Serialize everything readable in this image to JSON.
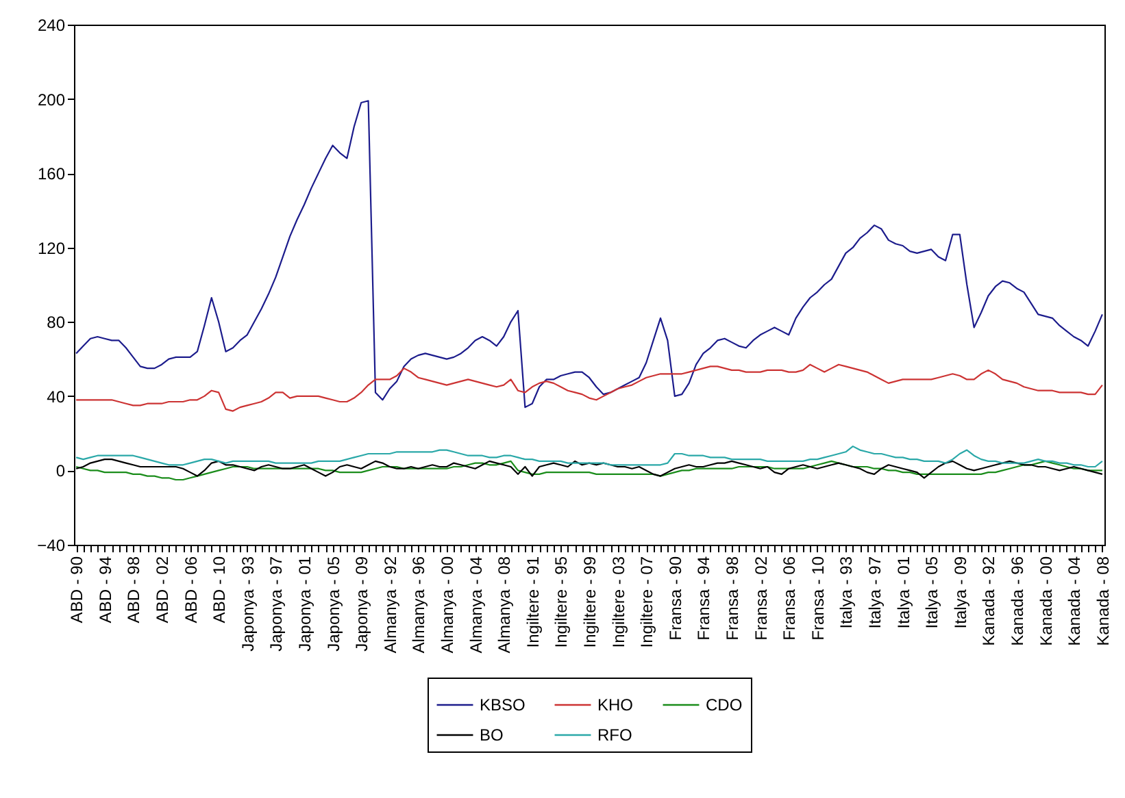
{
  "chart_data": {
    "type": "line",
    "legend": "bottom",
    "ylim": [
      -40,
      240
    ],
    "yticks": [
      -40,
      0,
      40,
      80,
      120,
      160,
      200,
      240
    ],
    "categories": [
      "ABD - 90",
      null,
      null,
      null,
      "ABD - 94",
      null,
      null,
      null,
      "ABD - 98",
      null,
      null,
      null,
      "ABD - 02",
      null,
      null,
      null,
      "ABD - 06",
      null,
      null,
      null,
      "ABD - 10",
      null,
      null,
      null,
      "Japonya - 93",
      null,
      null,
      null,
      "Japonya - 97",
      null,
      null,
      null,
      "Japonya - 01",
      null,
      null,
      null,
      "Japonya - 05",
      null,
      null,
      null,
      "Japonya - 09",
      null,
      null,
      null,
      "Almanya - 92",
      null,
      null,
      null,
      "Almanya - 96",
      null,
      null,
      null,
      "Almanya - 00",
      null,
      null,
      null,
      "Almanya - 04",
      null,
      null,
      null,
      "Almanya - 08",
      null,
      null,
      null,
      "Ingiltere - 91",
      null,
      null,
      null,
      "Ingiltere - 95",
      null,
      null,
      null,
      "Ingiltere - 99",
      null,
      null,
      null,
      "Ingiltere - 03",
      null,
      null,
      null,
      "Ingiltere - 07",
      null,
      null,
      null,
      "Fransa - 90",
      null,
      null,
      null,
      "Fransa - 94",
      null,
      null,
      null,
      "Fransa - 98",
      null,
      null,
      null,
      "Fransa - 02",
      null,
      null,
      null,
      "Fransa - 06",
      null,
      null,
      null,
      "Fransa - 10",
      null,
      null,
      null,
      "Italya - 93",
      null,
      null,
      null,
      "Italya - 97",
      null,
      null,
      null,
      "Italya - 01",
      null,
      null,
      null,
      "Italya - 05",
      null,
      null,
      null,
      "Italya - 09",
      null,
      null,
      null,
      "Kanada - 92",
      null,
      null,
      null,
      "Kanada - 96",
      null,
      null,
      null,
      "Kanada - 00",
      null,
      null,
      null,
      "Kanada - 04",
      null,
      null,
      null,
      "Kanada - 08"
    ],
    "series": [
      {
        "name": "KBSO",
        "color": "#1c1c8c",
        "values": [
          63,
          67,
          71,
          72,
          71,
          70,
          70,
          66,
          61,
          56,
          55,
          55,
          57,
          60,
          61,
          61,
          61,
          64,
          78,
          93,
          80,
          64,
          66,
          70,
          73,
          80,
          87,
          95,
          104,
          115,
          126,
          135,
          143,
          152,
          160,
          168,
          175,
          171,
          168,
          185,
          198,
          199,
          42,
          38,
          44,
          48,
          56,
          60,
          62,
          63,
          62,
          61,
          60,
          61,
          63,
          66,
          70,
          72,
          70,
          67,
          72,
          80,
          86,
          34,
          36,
          45,
          49,
          49,
          51,
          52,
          53,
          53,
          50,
          45,
          41,
          42,
          44,
          46,
          48,
          50,
          58,
          70,
          82,
          70,
          40,
          41,
          47,
          57,
          63,
          66,
          70,
          71,
          69,
          67,
          66,
          70,
          73,
          75,
          77,
          75,
          73,
          82,
          88,
          93,
          96,
          100,
          103,
          110,
          117,
          120,
          125,
          128,
          132,
          130,
          124,
          122,
          121,
          118,
          117,
          118,
          119,
          115,
          113,
          127,
          127,
          100,
          77,
          85,
          94,
          99,
          102,
          101,
          98,
          96,
          90,
          84,
          83,
          82,
          78,
          75,
          72,
          70,
          67,
          75,
          84
        ]
      },
      {
        "name": "KHO",
        "color": "#cc3333",
        "values": [
          38,
          38,
          38,
          38,
          38,
          38,
          37,
          36,
          35,
          35,
          36,
          36,
          36,
          37,
          37,
          37,
          38,
          38,
          40,
          43,
          42,
          33,
          32,
          34,
          35,
          36,
          37,
          39,
          42,
          42,
          39,
          40,
          40,
          40,
          40,
          39,
          38,
          37,
          37,
          39,
          42,
          46,
          49,
          49,
          49,
          51,
          55,
          53,
          50,
          49,
          48,
          47,
          46,
          47,
          48,
          49,
          48,
          47,
          46,
          45,
          46,
          49,
          43,
          42,
          45,
          47,
          48,
          47,
          45,
          43,
          42,
          41,
          39,
          38,
          40,
          42,
          44,
          45,
          46,
          48,
          50,
          51,
          52,
          52,
          52,
          52,
          53,
          54,
          55,
          56,
          56,
          55,
          54,
          54,
          53,
          53,
          53,
          54,
          54,
          54,
          53,
          53,
          54,
          57,
          55,
          53,
          55,
          57,
          56,
          55,
          54,
          53,
          51,
          49,
          47,
          48,
          49,
          49,
          49,
          49,
          49,
          50,
          51,
          52,
          51,
          49,
          49,
          52,
          54,
          52,
          49,
          48,
          47,
          45,
          44,
          43,
          43,
          43,
          42,
          42,
          42,
          42,
          41,
          41,
          46
        ]
      },
      {
        "name": "CDO",
        "color": "#1a8c1a",
        "values": [
          2,
          1,
          0,
          0,
          -1,
          -1,
          -1,
          -1,
          -2,
          -2,
          -3,
          -3,
          -4,
          -4,
          -5,
          -5,
          -4,
          -3,
          -2,
          -1,
          0,
          1,
          2,
          2,
          2,
          1,
          1,
          1,
          1,
          1,
          1,
          1,
          1,
          1,
          1,
          0,
          0,
          -1,
          -1,
          -1,
          -1,
          0,
          1,
          2,
          2,
          2,
          1,
          1,
          1,
          1,
          1,
          1,
          1,
          2,
          2,
          3,
          4,
          4,
          3,
          3,
          4,
          5,
          0,
          -1,
          -2,
          -2,
          -1,
          -1,
          -1,
          -1,
          -1,
          -1,
          -1,
          -2,
          -2,
          -2,
          -2,
          -2,
          -2,
          -2,
          -2,
          -2,
          -3,
          -2,
          -1,
          0,
          0,
          1,
          1,
          1,
          1,
          1,
          1,
          2,
          2,
          2,
          2,
          2,
          1,
          1,
          1,
          1,
          1,
          2,
          3,
          4,
          5,
          4,
          3,
          2,
          2,
          2,
          1,
          1,
          0,
          0,
          -1,
          -1,
          -2,
          -2,
          -2,
          -2,
          -2,
          -2,
          -2,
          -2,
          -2,
          -2,
          -1,
          -1,
          0,
          1,
          2,
          3,
          3,
          4,
          5,
          4,
          3,
          2,
          1,
          1,
          0,
          0,
          0
        ]
      },
      {
        "name": "BO",
        "color": "#000000",
        "values": [
          1,
          2,
          4,
          5,
          6,
          6,
          5,
          4,
          3,
          2,
          2,
          2,
          2,
          2,
          2,
          1,
          -1,
          -3,
          0,
          4,
          5,
          3,
          3,
          2,
          1,
          0,
          2,
          3,
          2,
          1,
          1,
          2,
          3,
          1,
          -1,
          -3,
          -1,
          2,
          3,
          2,
          1,
          3,
          5,
          4,
          2,
          1,
          1,
          2,
          1,
          2,
          3,
          2,
          2,
          4,
          3,
          2,
          1,
          3,
          5,
          4,
          3,
          2,
          -2,
          2,
          -3,
          2,
          3,
          4,
          3,
          2,
          5,
          3,
          4,
          3,
          4,
          3,
          2,
          2,
          1,
          2,
          0,
          -2,
          -3,
          -1,
          1,
          2,
          3,
          2,
          2,
          3,
          4,
          4,
          5,
          4,
          3,
          2,
          1,
          2,
          -1,
          -2,
          1,
          2,
          3,
          2,
          1,
          2,
          3,
          4,
          3,
          2,
          1,
          -1,
          -2,
          1,
          3,
          2,
          1,
          0,
          -1,
          -4,
          -1,
          2,
          4,
          5,
          3,
          1,
          0,
          1,
          2,
          3,
          4,
          5,
          4,
          3,
          3,
          2,
          2,
          1,
          0,
          1,
          2,
          1,
          0,
          -1,
          -2
        ]
      },
      {
        "name": "RFO",
        "color": "#2aa8a8",
        "values": [
          7,
          6,
          7,
          8,
          8,
          8,
          8,
          8,
          8,
          7,
          6,
          5,
          4,
          3,
          3,
          3,
          4,
          5,
          6,
          6,
          5,
          4,
          5,
          5,
          5,
          5,
          5,
          5,
          4,
          4,
          4,
          4,
          4,
          4,
          5,
          5,
          5,
          5,
          6,
          7,
          8,
          9,
          9,
          9,
          9,
          10,
          10,
          10,
          10,
          10,
          10,
          11,
          11,
          10,
          9,
          8,
          8,
          8,
          7,
          7,
          8,
          8,
          7,
          6,
          6,
          5,
          5,
          5,
          5,
          4,
          4,
          4,
          4,
          4,
          4,
          3,
          3,
          3,
          3,
          3,
          3,
          3,
          3,
          4,
          9,
          9,
          8,
          8,
          8,
          7,
          7,
          7,
          6,
          6,
          6,
          6,
          6,
          5,
          5,
          5,
          5,
          5,
          5,
          6,
          6,
          7,
          8,
          9,
          10,
          13,
          11,
          10,
          9,
          9,
          8,
          7,
          7,
          6,
          6,
          5,
          5,
          5,
          4,
          6,
          9,
          11,
          8,
          6,
          5,
          5,
          4,
          4,
          4,
          4,
          5,
          6,
          5,
          5,
          4,
          4,
          3,
          3,
          2,
          2,
          5
        ]
      }
    ]
  }
}
